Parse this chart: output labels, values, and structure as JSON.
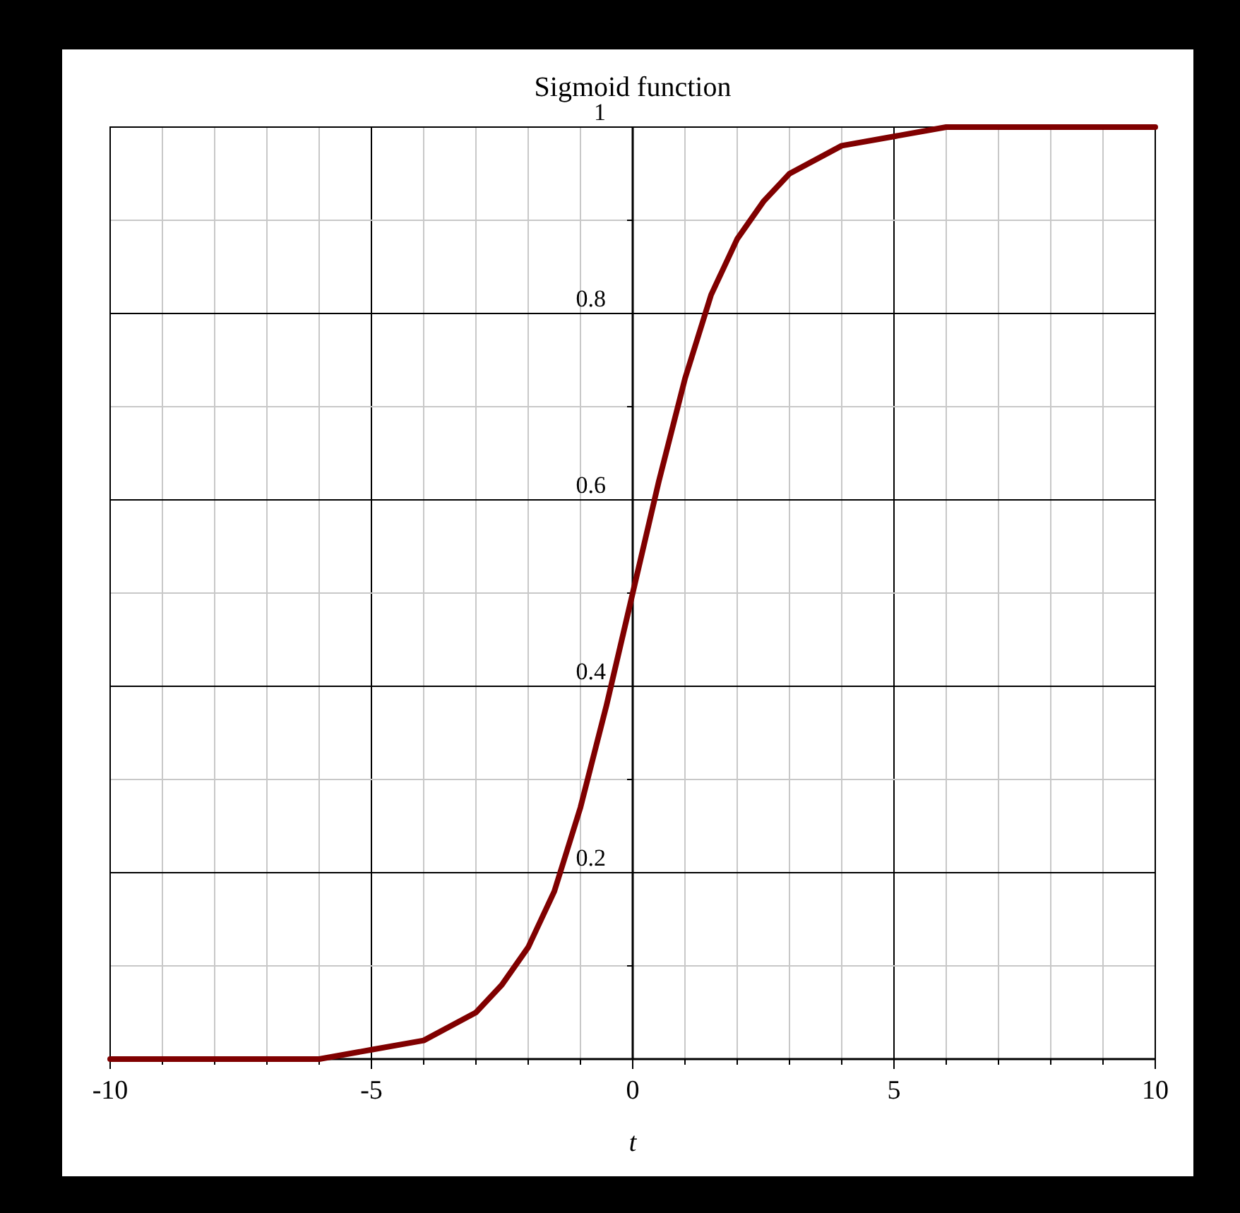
{
  "chart_data": {
    "type": "line",
    "title": "Sigmoid function",
    "xlabel": "t",
    "xlim": [
      -10,
      10
    ],
    "ylim": [
      0,
      1
    ],
    "xticks": [
      -10,
      {
        "value": -9,
        "label": null
      },
      {
        "value": -8,
        "label": null
      },
      {
        "value": -7,
        "label": null
      },
      {
        "value": -6,
        "label": null
      },
      -5,
      {
        "value": -4,
        "label": null
      },
      {
        "value": -3,
        "label": null
      },
      {
        "value": -2,
        "label": null
      },
      {
        "value": -1,
        "label": null
      },
      0,
      {
        "value": 1,
        "label": null
      },
      {
        "value": 2,
        "label": null
      },
      {
        "value": 3,
        "label": null
      },
      {
        "value": 4,
        "label": null
      },
      5,
      {
        "value": 6,
        "label": null
      },
      {
        "value": 7,
        "label": null
      },
      {
        "value": 8,
        "label": null
      },
      {
        "value": 9,
        "label": null
      },
      10
    ],
    "yticks": [
      {
        "value": 0.1,
        "label": null
      },
      0.2,
      {
        "value": 0.3,
        "label": null
      },
      0.4,
      {
        "value": 0.5,
        "label": null
      },
      0.6,
      {
        "value": 0.7,
        "label": null
      },
      0.8,
      {
        "value": 0.9,
        "label": null
      },
      1
    ],
    "grid": true,
    "x": [
      -10,
      -8,
      -7,
      -6,
      -5,
      -4,
      -3,
      -2.5,
      -2,
      -1.5,
      -1,
      -0.5,
      0,
      0.5,
      1,
      1.5,
      2,
      2.5,
      3,
      4,
      5,
      6,
      7,
      8,
      10
    ],
    "series": [
      {
        "color": "#800000",
        "values": [
          0,
          0,
          0,
          0,
          0.01,
          0.02,
          0.05,
          0.08,
          0.12,
          0.18,
          0.27,
          0.38,
          0.5,
          0.62,
          0.73,
          0.82,
          0.88,
          0.92,
          0.95,
          0.98,
          0.99,
          1,
          1,
          1,
          1
        ]
      }
    ]
  }
}
